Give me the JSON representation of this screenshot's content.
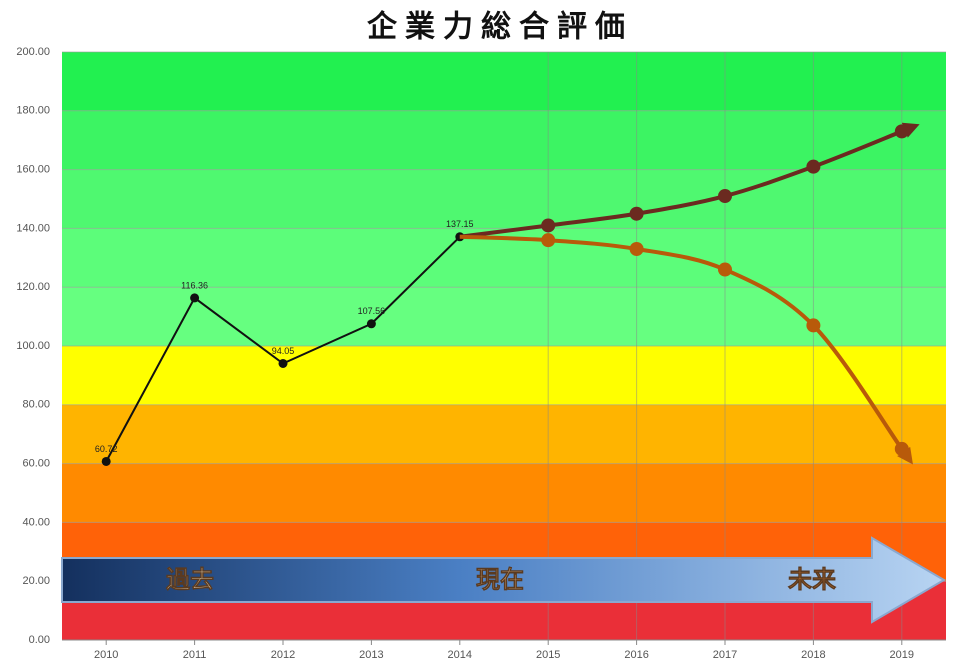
{
  "chart_data": {
    "type": "line",
    "title": "企業力総合評価",
    "categories": [
      "2010",
      "2011",
      "2012",
      "2013",
      "2014",
      "2015",
      "2016",
      "2017",
      "2018",
      "2019"
    ],
    "series": [
      {
        "color": "#111111",
        "values": [
          60.72,
          116.36,
          94.05,
          107.56,
          137.15,
          null,
          null,
          null,
          null,
          null
        ],
        "show_labels": true
      },
      {
        "color": "#6b2a20",
        "values": [
          null,
          null,
          null,
          null,
          137.15,
          141,
          145,
          151,
          161,
          173
        ],
        "arrow": true
      },
      {
        "color": "#b85a0a",
        "values": [
          null,
          null,
          null,
          null,
          137.15,
          136,
          133,
          126,
          107,
          65
        ],
        "arrow": true
      }
    ],
    "ylim": [
      0,
      200
    ],
    "yticks": [
      {
        "value": 0,
        "label": "0.00"
      },
      {
        "value": 20,
        "label": "20.00"
      },
      {
        "value": 40,
        "label": "40.00"
      },
      {
        "value": 60,
        "label": "60.00"
      },
      {
        "value": 80,
        "label": "80.00"
      },
      {
        "value": 100,
        "label": "100.00"
      },
      {
        "value": 120,
        "label": "120.00"
      },
      {
        "value": 140,
        "label": "140.00"
      },
      {
        "value": 160,
        "label": "160.00"
      },
      {
        "value": 180,
        "label": "180.00"
      },
      {
        "value": 200,
        "label": "200.00"
      }
    ],
    "bands": [
      {
        "from": 0,
        "to": 20,
        "color": "#ea2f38"
      },
      {
        "from": 20,
        "to": 40,
        "color": "#ff6208"
      },
      {
        "from": 40,
        "to": 60,
        "color": "#ff8a00"
      },
      {
        "from": 60,
        "to": 80,
        "color": "#ffb400"
      },
      {
        "from": 80,
        "to": 100,
        "color": "#ffff00"
      },
      {
        "from": 100,
        "to": 120,
        "color": "#66ff80"
      },
      {
        "from": 120,
        "to": 140,
        "color": "#5cfd7a"
      },
      {
        "from": 140,
        "to": 160,
        "color": "#4ff870"
      },
      {
        "from": 160,
        "to": 180,
        "color": "#3cf463"
      },
      {
        "from": 180,
        "to": 200,
        "color": "#22f050"
      }
    ],
    "annotations": [
      "過去",
      "現在",
      "未来"
    ],
    "grid": true
  }
}
